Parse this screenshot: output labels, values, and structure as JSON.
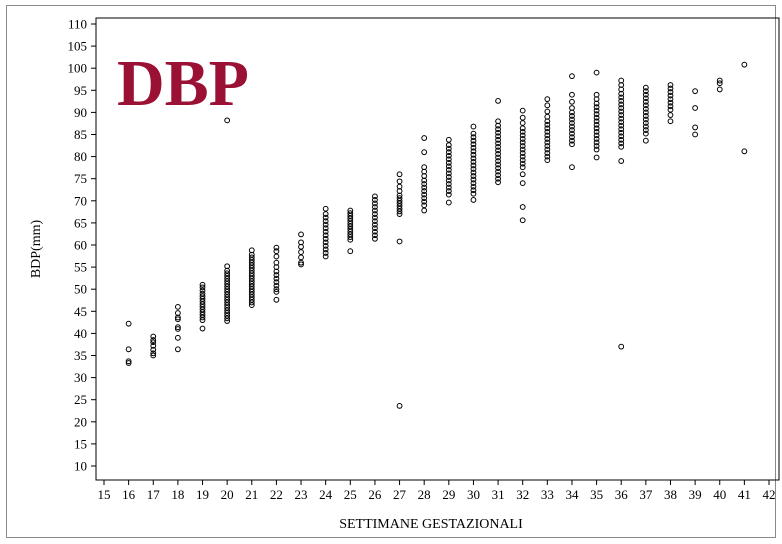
{
  "chart_data": {
    "type": "scatter",
    "title": "DBP",
    "title_color": "#9b1035",
    "xlabel": "SETTIMANE GESTAZIONALI",
    "ylabel": "BDP(mm)",
    "xlim": [
      15,
      42
    ],
    "ylim": [
      10,
      110
    ],
    "xticks": [
      15,
      16,
      17,
      18,
      19,
      20,
      21,
      22,
      23,
      24,
      25,
      26,
      27,
      28,
      29,
      30,
      31,
      32,
      33,
      34,
      35,
      36,
      37,
      38,
      39,
      40,
      41,
      42
    ],
    "yticks": [
      10,
      15,
      20,
      25,
      30,
      35,
      40,
      45,
      50,
      55,
      60,
      65,
      70,
      75,
      80,
      85,
      90,
      95,
      100,
      105,
      110
    ],
    "marker": "open-circle",
    "grid": false,
    "point_groups": [
      {
        "x": 16,
        "y": [
          42.2,
          36.4,
          33.7,
          33.3
        ]
      },
      {
        "x": 17,
        "y": [
          39.3,
          38.5,
          38.0,
          37.2,
          36.3,
          35.5,
          35.0
        ]
      },
      {
        "x": 18,
        "y": [
          46.0,
          44.6,
          43.6,
          43.2,
          41.4,
          41.0,
          39.0,
          36.4
        ]
      },
      {
        "x": 19,
        "y": [
          51.0,
          50.4,
          49.7,
          49.0,
          48.4,
          47.8,
          47.2,
          46.6,
          46.0,
          45.4,
          44.8,
          44.2,
          43.6,
          43.0,
          41.1
        ]
      },
      {
        "x": 20,
        "y": [
          88.2,
          55.2,
          54.2,
          53.6,
          53.0,
          52.4,
          51.8,
          51.2,
          50.6,
          50.0,
          49.4,
          48.8,
          48.2,
          47.6,
          47.0,
          46.4,
          45.8,
          45.2,
          44.6,
          44.0,
          43.4,
          42.8
        ]
      },
      {
        "x": 21,
        "y": [
          58.8,
          57.8,
          57.2,
          56.6,
          56.0,
          55.4,
          54.8,
          54.2,
          53.6,
          53.0,
          52.4,
          51.8,
          51.2,
          50.6,
          50.0,
          49.4,
          48.8,
          48.2,
          47.6,
          47.0,
          46.4
        ]
      },
      {
        "x": 22,
        "y": [
          59.4,
          58.6,
          57.4,
          56.0,
          55.0,
          54.0,
          53.2,
          52.4,
          51.6,
          50.8,
          50.0,
          49.4,
          47.6
        ]
      },
      {
        "x": 23,
        "y": [
          62.4,
          60.6,
          59.6,
          58.4,
          57.2,
          56.0,
          55.6
        ]
      },
      {
        "x": 24,
        "y": [
          68.2,
          67.0,
          66.2,
          65.4,
          64.6,
          63.8,
          63.0,
          62.2,
          61.4,
          60.6,
          59.8,
          59.0,
          58.2,
          57.4
        ]
      },
      {
        "x": 25,
        "y": [
          67.8,
          67.2,
          66.6,
          66.0,
          65.4,
          64.8,
          64.2,
          63.6,
          63.0,
          62.4,
          61.8,
          61.2,
          58.6
        ]
      },
      {
        "x": 26,
        "y": [
          71.0,
          70.2,
          69.4,
          68.6,
          67.8,
          67.0,
          66.2,
          65.4,
          64.6,
          63.8,
          63.0,
          62.2,
          61.4
        ]
      },
      {
        "x": 27,
        "y": [
          76.0,
          74.4,
          73.2,
          72.2,
          71.2,
          70.6,
          70.0,
          69.4,
          68.8,
          68.2,
          67.6,
          67.0,
          60.8,
          23.6
        ]
      },
      {
        "x": 28,
        "y": [
          84.2,
          81.0,
          77.6,
          76.6,
          75.6,
          74.6,
          73.8,
          73.0,
          72.2,
          71.4,
          70.6,
          69.8,
          69.0,
          67.8
        ]
      },
      {
        "x": 29,
        "y": [
          83.8,
          82.6,
          81.8,
          81.0,
          80.2,
          79.4,
          78.6,
          77.8,
          77.0,
          76.2,
          75.4,
          74.6,
          73.8,
          73.0,
          72.2,
          71.4,
          69.6
        ]
      },
      {
        "x": 30,
        "y": [
          86.8,
          85.2,
          84.4,
          83.6,
          82.8,
          82.0,
          81.2,
          80.4,
          79.6,
          78.8,
          78.0,
          77.2,
          76.4,
          75.6,
          74.8,
          74.0,
          73.2,
          72.4,
          71.6,
          70.2
        ]
      },
      {
        "x": 31,
        "y": [
          92.6,
          88.0,
          87.0,
          86.2,
          85.4,
          84.6,
          83.8,
          83.0,
          82.2,
          81.4,
          80.6,
          79.8,
          79.0,
          78.2,
          77.4,
          76.6,
          75.8,
          75.0,
          74.2
        ]
      },
      {
        "x": 32,
        "y": [
          90.4,
          88.8,
          87.6,
          86.4,
          85.6,
          84.8,
          84.0,
          83.2,
          82.4,
          81.6,
          80.8,
          80.0,
          79.2,
          78.4,
          77.6,
          76.0,
          74.0,
          68.6,
          65.6
        ]
      },
      {
        "x": 33,
        "y": [
          93.0,
          91.6,
          90.2,
          89.0,
          88.0,
          87.2,
          86.4,
          85.6,
          84.8,
          84.0,
          83.2,
          82.4,
          81.6,
          80.8,
          80.0,
          79.2
        ]
      },
      {
        "x": 34,
        "y": [
          98.2,
          94.0,
          92.4,
          91.0,
          90.0,
          89.2,
          88.4,
          87.6,
          86.8,
          86.0,
          85.2,
          84.4,
          83.6,
          82.8,
          77.6
        ]
      },
      {
        "x": 35,
        "y": [
          99.0,
          94.0,
          93.0,
          92.0,
          91.2,
          90.4,
          89.6,
          88.8,
          88.0,
          87.2,
          86.4,
          85.6,
          84.8,
          84.0,
          83.2,
          82.4,
          81.6,
          79.8
        ]
      },
      {
        "x": 36,
        "y": [
          97.2,
          96.2,
          95.2,
          94.2,
          93.4,
          92.6,
          91.8,
          91.0,
          90.2,
          89.4,
          88.6,
          87.8,
          87.0,
          86.2,
          85.4,
          84.6,
          83.8,
          83.0,
          82.2,
          79.0,
          37.0
        ]
      },
      {
        "x": 37,
        "y": [
          95.6,
          94.8,
          94.0,
          93.2,
          92.4,
          91.6,
          90.8,
          90.0,
          89.2,
          88.4,
          87.6,
          86.8,
          86.0,
          85.2,
          83.6
        ]
      },
      {
        "x": 38,
        "y": [
          96.2,
          95.4,
          94.6,
          93.8,
          93.0,
          92.2,
          91.4,
          90.6,
          89.4,
          88.0
        ]
      },
      {
        "x": 39,
        "y": [
          94.8,
          91.0,
          86.6,
          85.0
        ]
      },
      {
        "x": 40,
        "y": [
          97.2,
          96.6,
          95.2
        ]
      },
      {
        "x": 41,
        "y": [
          100.8,
          81.2
        ]
      }
    ]
  }
}
